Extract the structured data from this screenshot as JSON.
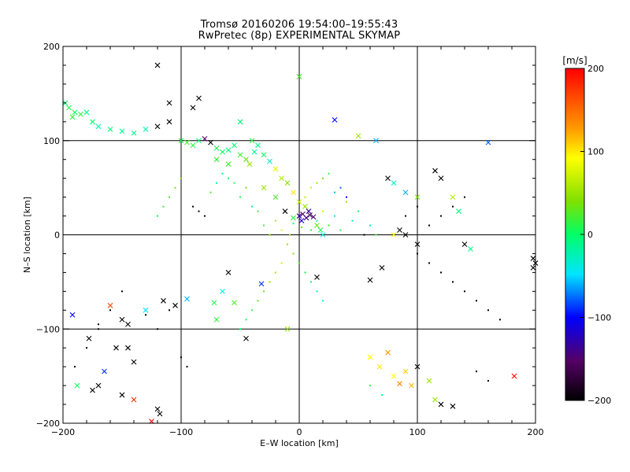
{
  "chart_data": {
    "type": "scatter",
    "title": "Tromsø 20160206 19:54:00–19:55:43",
    "subtitle": "RwPretec (8p) EXPERIMENTAL SKYMAP",
    "xlabel": "E–W location [km]",
    "ylabel": "N–S location [km]",
    "xlim": [
      -200,
      200
    ],
    "ylim": [
      -200,
      200
    ],
    "xticks": [
      "−200",
      "−100",
      "0",
      "100",
      "200"
    ],
    "yticks": [
      "−200",
      "−100",
      "0",
      "100",
      "200"
    ],
    "grid": true,
    "colorbar": {
      "label": "[m/s]",
      "range": [
        -200,
        200
      ],
      "ticks": [
        "200",
        "100",
        "0",
        "−100",
        "−200"
      ]
    },
    "series": [
      {
        "marker": "x",
        "points": [
          [
            -195,
            135,
            10
          ],
          [
            -190,
            130,
            5
          ],
          [
            -185,
            128,
            15
          ],
          [
            -198,
            140,
            0
          ],
          [
            -192,
            125,
            20
          ],
          [
            -180,
            130,
            -10
          ],
          [
            -175,
            120,
            0
          ],
          [
            -170,
            115,
            -20
          ],
          [
            -160,
            112,
            -5
          ],
          [
            -150,
            110,
            -15
          ],
          [
            -140,
            108,
            -10
          ],
          [
            -130,
            112,
            -25
          ],
          [
            -120,
            115,
            -200
          ],
          [
            -110,
            120,
            -200
          ],
          [
            -100,
            100,
            10
          ],
          [
            -95,
            98,
            30
          ],
          [
            -90,
            95,
            15
          ],
          [
            -85,
            100,
            -5
          ],
          [
            -80,
            102,
            -150
          ],
          [
            -75,
            98,
            -200
          ],
          [
            -70,
            92,
            10
          ],
          [
            -65,
            88,
            5
          ],
          [
            -60,
            90,
            -5
          ],
          [
            -55,
            95,
            0
          ],
          [
            -50,
            85,
            20
          ],
          [
            -45,
            80,
            40
          ],
          [
            -42,
            75,
            60
          ],
          [
            -38,
            88,
            -15
          ],
          [
            -35,
            95,
            -10
          ],
          [
            -30,
            85,
            5
          ],
          [
            -25,
            78,
            -30
          ],
          [
            -20,
            70,
            90
          ],
          [
            -15,
            60,
            70
          ],
          [
            -10,
            55,
            50
          ],
          [
            -5,
            45,
            110
          ],
          [
            0,
            35,
            80
          ],
          [
            5,
            30,
            60
          ],
          [
            -40,
            100,
            15
          ],
          [
            -60,
            75,
            25
          ],
          [
            -70,
            80,
            20
          ],
          [
            0,
            20,
            -130
          ],
          [
            3,
            22,
            -150
          ],
          [
            6,
            18,
            -140
          ],
          [
            9,
            21,
            -160
          ],
          [
            12,
            19,
            -145
          ],
          [
            2,
            15,
            -120
          ],
          [
            8,
            25,
            -135
          ],
          [
            -5,
            18,
            20
          ],
          [
            -12,
            25,
            -200
          ],
          [
            15,
            10,
            40
          ],
          [
            18,
            5,
            10
          ],
          [
            20,
            0,
            -40
          ],
          [
            -20,
            40,
            30
          ],
          [
            -30,
            50,
            60
          ],
          [
            0,
            168,
            30
          ],
          [
            -50,
            120,
            -5
          ],
          [
            -110,
            140,
            -200
          ],
          [
            -120,
            180,
            -200
          ],
          [
            30,
            122,
            -100
          ],
          [
            -85,
            145,
            -200
          ],
          [
            -90,
            135,
            -200
          ],
          [
            50,
            105,
            60
          ],
          [
            65,
            100,
            -60
          ],
          [
            75,
            60,
            -200
          ],
          [
            80,
            55,
            -30
          ],
          [
            90,
            45,
            -60
          ],
          [
            100,
            40,
            50
          ],
          [
            115,
            68,
            -200
          ],
          [
            120,
            60,
            -200
          ],
          [
            130,
            40,
            70
          ],
          [
            135,
            25,
            -10
          ],
          [
            140,
            -10,
            -200
          ],
          [
            145,
            -15,
            -10
          ],
          [
            160,
            98,
            -80
          ],
          [
            198,
            -25,
            -200
          ],
          [
            200,
            -30,
            -200
          ],
          [
            198,
            -35,
            -200
          ],
          [
            60,
            -48,
            -200
          ],
          [
            70,
            -35,
            -200
          ],
          [
            85,
            5,
            -200
          ],
          [
            90,
            0,
            -200
          ],
          [
            80,
            0,
            100
          ],
          [
            100,
            -10,
            -200
          ],
          [
            -95,
            -68,
            -60
          ],
          [
            -105,
            -75,
            -200
          ],
          [
            -160,
            -75,
            170
          ],
          [
            -150,
            -90,
            -200
          ],
          [
            -145,
            -95,
            -200
          ],
          [
            -155,
            -120,
            -200
          ],
          [
            -170,
            -160,
            -200
          ],
          [
            -178,
            -110,
            -200
          ],
          [
            -165,
            -145,
            -90
          ],
          [
            -150,
            -170,
            -200
          ],
          [
            -140,
            -175,
            180
          ],
          [
            -120,
            -185,
            -200
          ],
          [
            -118,
            -190,
            -200
          ],
          [
            -125,
            -198,
            200
          ],
          [
            -130,
            -80,
            -50
          ],
          [
            -175,
            -165,
            -200
          ],
          [
            -188,
            -160,
            5
          ],
          [
            -192,
            -85,
            -100
          ],
          [
            -65,
            -60,
            -40
          ],
          [
            -45,
            -110,
            -200
          ],
          [
            -32,
            -52,
            -90
          ],
          [
            -10,
            -100,
            50
          ],
          [
            15,
            -45,
            -200
          ],
          [
            60,
            -130,
            100
          ],
          [
            68,
            -140,
            110
          ],
          [
            75,
            -125,
            140
          ],
          [
            80,
            -150,
            100
          ],
          [
            85,
            -158,
            150
          ],
          [
            90,
            -145,
            120
          ],
          [
            95,
            -160,
            130
          ],
          [
            100,
            -140,
            -200
          ],
          [
            110,
            -155,
            60
          ],
          [
            115,
            -175,
            60
          ],
          [
            120,
            -180,
            -200
          ],
          [
            130,
            -182,
            -200
          ],
          [
            182,
            -150,
            200
          ],
          [
            -60,
            -40,
            -200
          ],
          [
            -72,
            -72,
            10
          ],
          [
            -55,
            -72,
            30
          ],
          [
            -70,
            -90,
            20
          ],
          [
            -115,
            -70,
            -200
          ],
          [
            -140,
            -135,
            -200
          ],
          [
            -145,
            -120,
            -200
          ]
        ]
      },
      {
        "marker": "dot",
        "points": [
          [
            -5,
            12,
            -10
          ],
          [
            2,
            8,
            40
          ],
          [
            10,
            5,
            20
          ],
          [
            -8,
            0,
            60
          ],
          [
            15,
            15,
            -20
          ],
          [
            20,
            25,
            80
          ],
          [
            25,
            10,
            30
          ],
          [
            30,
            20,
            -40
          ],
          [
            35,
            5,
            10
          ],
          [
            -15,
            5,
            90
          ],
          [
            -20,
            15,
            70
          ],
          [
            -25,
            0,
            50
          ],
          [
            -30,
            10,
            30
          ],
          [
            -35,
            25,
            20
          ],
          [
            -40,
            30,
            -10
          ],
          [
            40,
            35,
            60
          ],
          [
            45,
            15,
            -30
          ],
          [
            50,
            25,
            10
          ],
          [
            55,
            0,
            -200
          ],
          [
            60,
            10,
            -30
          ],
          [
            65,
            0,
            30
          ],
          [
            -45,
            50,
            40
          ],
          [
            -50,
            40,
            20
          ],
          [
            -55,
            55,
            10
          ],
          [
            -60,
            60,
            5
          ],
          [
            -65,
            65,
            -5
          ],
          [
            -70,
            55,
            -20
          ],
          [
            -75,
            45,
            30
          ],
          [
            5,
            40,
            70
          ],
          [
            10,
            50,
            80
          ],
          [
            15,
            55,
            60
          ],
          [
            20,
            60,
            40
          ],
          [
            25,
            65,
            20
          ],
          [
            30,
            45,
            -60
          ],
          [
            35,
            50,
            -80
          ],
          [
            40,
            40,
            -100
          ],
          [
            -10,
            -10,
            60
          ],
          [
            -5,
            -20,
            50
          ],
          [
            0,
            -30,
            30
          ],
          [
            5,
            -40,
            10
          ],
          [
            10,
            -50,
            -10
          ],
          [
            15,
            -60,
            -30
          ],
          [
            20,
            -70,
            -50
          ],
          [
            -15,
            -30,
            80
          ],
          [
            -20,
            -40,
            70
          ],
          [
            -25,
            -50,
            60
          ],
          [
            -30,
            -60,
            50
          ],
          [
            -35,
            -70,
            40
          ],
          [
            -40,
            -80,
            20
          ],
          [
            -45,
            -90,
            10
          ],
          [
            -50,
            -100,
            0
          ],
          [
            -100,
            60,
            50
          ],
          [
            -105,
            50,
            40
          ],
          [
            -110,
            40,
            30
          ],
          [
            -115,
            30,
            20
          ],
          [
            -120,
            20,
            10
          ],
          [
            -90,
            30,
            -200
          ],
          [
            -85,
            25,
            -200
          ],
          [
            -80,
            20,
            -200
          ],
          [
            -150,
            -60,
            -200
          ],
          [
            -160,
            -80,
            -200
          ],
          [
            -170,
            -100,
            -200
          ],
          [
            -180,
            -120,
            -200
          ],
          [
            -190,
            -140,
            -200
          ],
          [
            -170,
            -95,
            -200
          ],
          [
            -130,
            -85,
            -200
          ],
          [
            -120,
            -100,
            -200
          ],
          [
            -110,
            -80,
            -200
          ],
          [
            100,
            -20,
            -200
          ],
          [
            110,
            -30,
            -200
          ],
          [
            120,
            -40,
            -200
          ],
          [
            130,
            -50,
            -200
          ],
          [
            140,
            -60,
            -200
          ],
          [
            150,
            -70,
            -200
          ],
          [
            160,
            -80,
            -200
          ],
          [
            170,
            -90,
            -200
          ],
          [
            90,
            20,
            -200
          ],
          [
            100,
            30,
            -200
          ],
          [
            110,
            10,
            -200
          ],
          [
            120,
            20,
            -200
          ],
          [
            130,
            30,
            -200
          ],
          [
            140,
            40,
            -200
          ],
          [
            150,
            -145,
            -200
          ],
          [
            160,
            -155,
            -200
          ],
          [
            60,
            -160,
            20
          ],
          [
            70,
            -170,
            -10
          ],
          [
            -100,
            -130,
            -200
          ],
          [
            -95,
            -140,
            -200
          ]
        ]
      }
    ]
  }
}
